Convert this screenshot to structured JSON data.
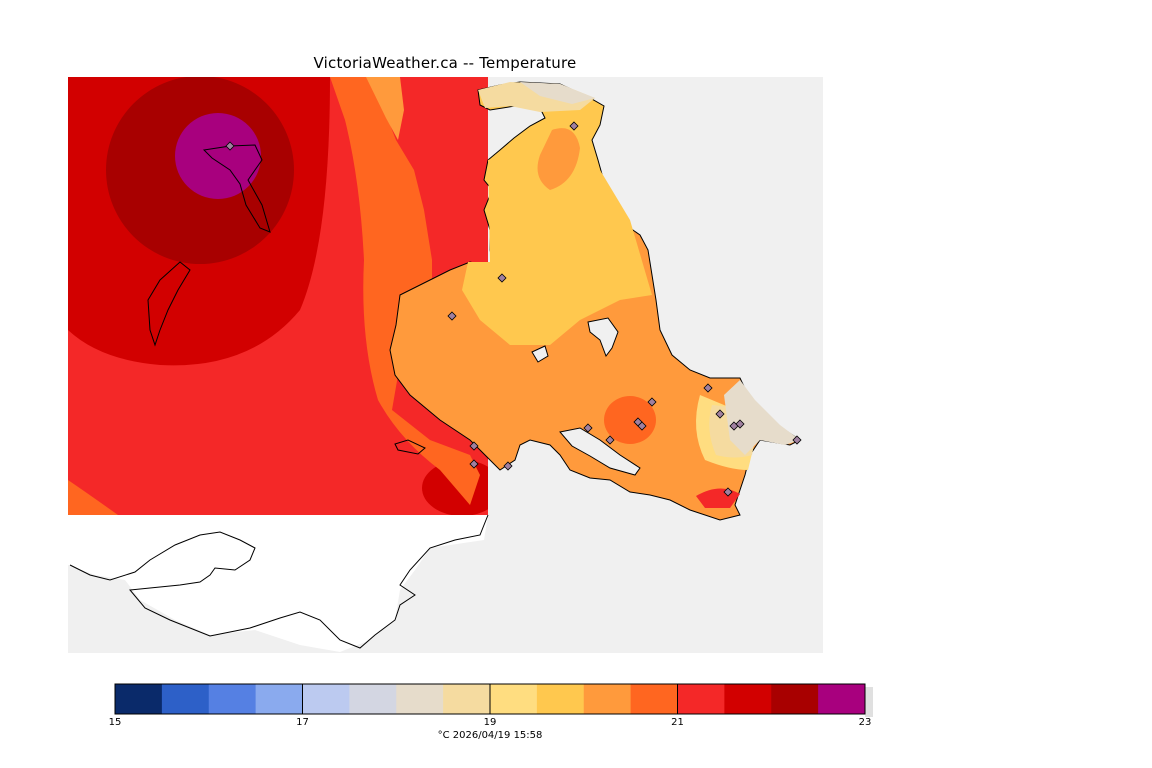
{
  "title": "VictoriaWeather.ca -- Temperature",
  "legend": {
    "unit": "°C",
    "timestamp": "2026/04/19 15:58",
    "ticks": [
      "15",
      "17",
      "19",
      "21",
      "23"
    ],
    "colors": [
      "#0a2a6a",
      "#2d60c8",
      "#5580e3",
      "#8aaaee",
      "#bccaf0",
      "#d3d6e2",
      "#e6dccb",
      "#f5dba0",
      "#ffdd80",
      "#ffc84e",
      "#ff9a3c",
      "#ff6620",
      "#f42828",
      "#d20000",
      "#a80000",
      "#a8007e"
    ],
    "range": [
      15,
      23
    ]
  },
  "colors": {
    "background": "#f0f0f0",
    "land_white": "#ffffff",
    "coast": "#000000",
    "station_marker": "#a080a0"
  },
  "stations_count_visible": 21
}
